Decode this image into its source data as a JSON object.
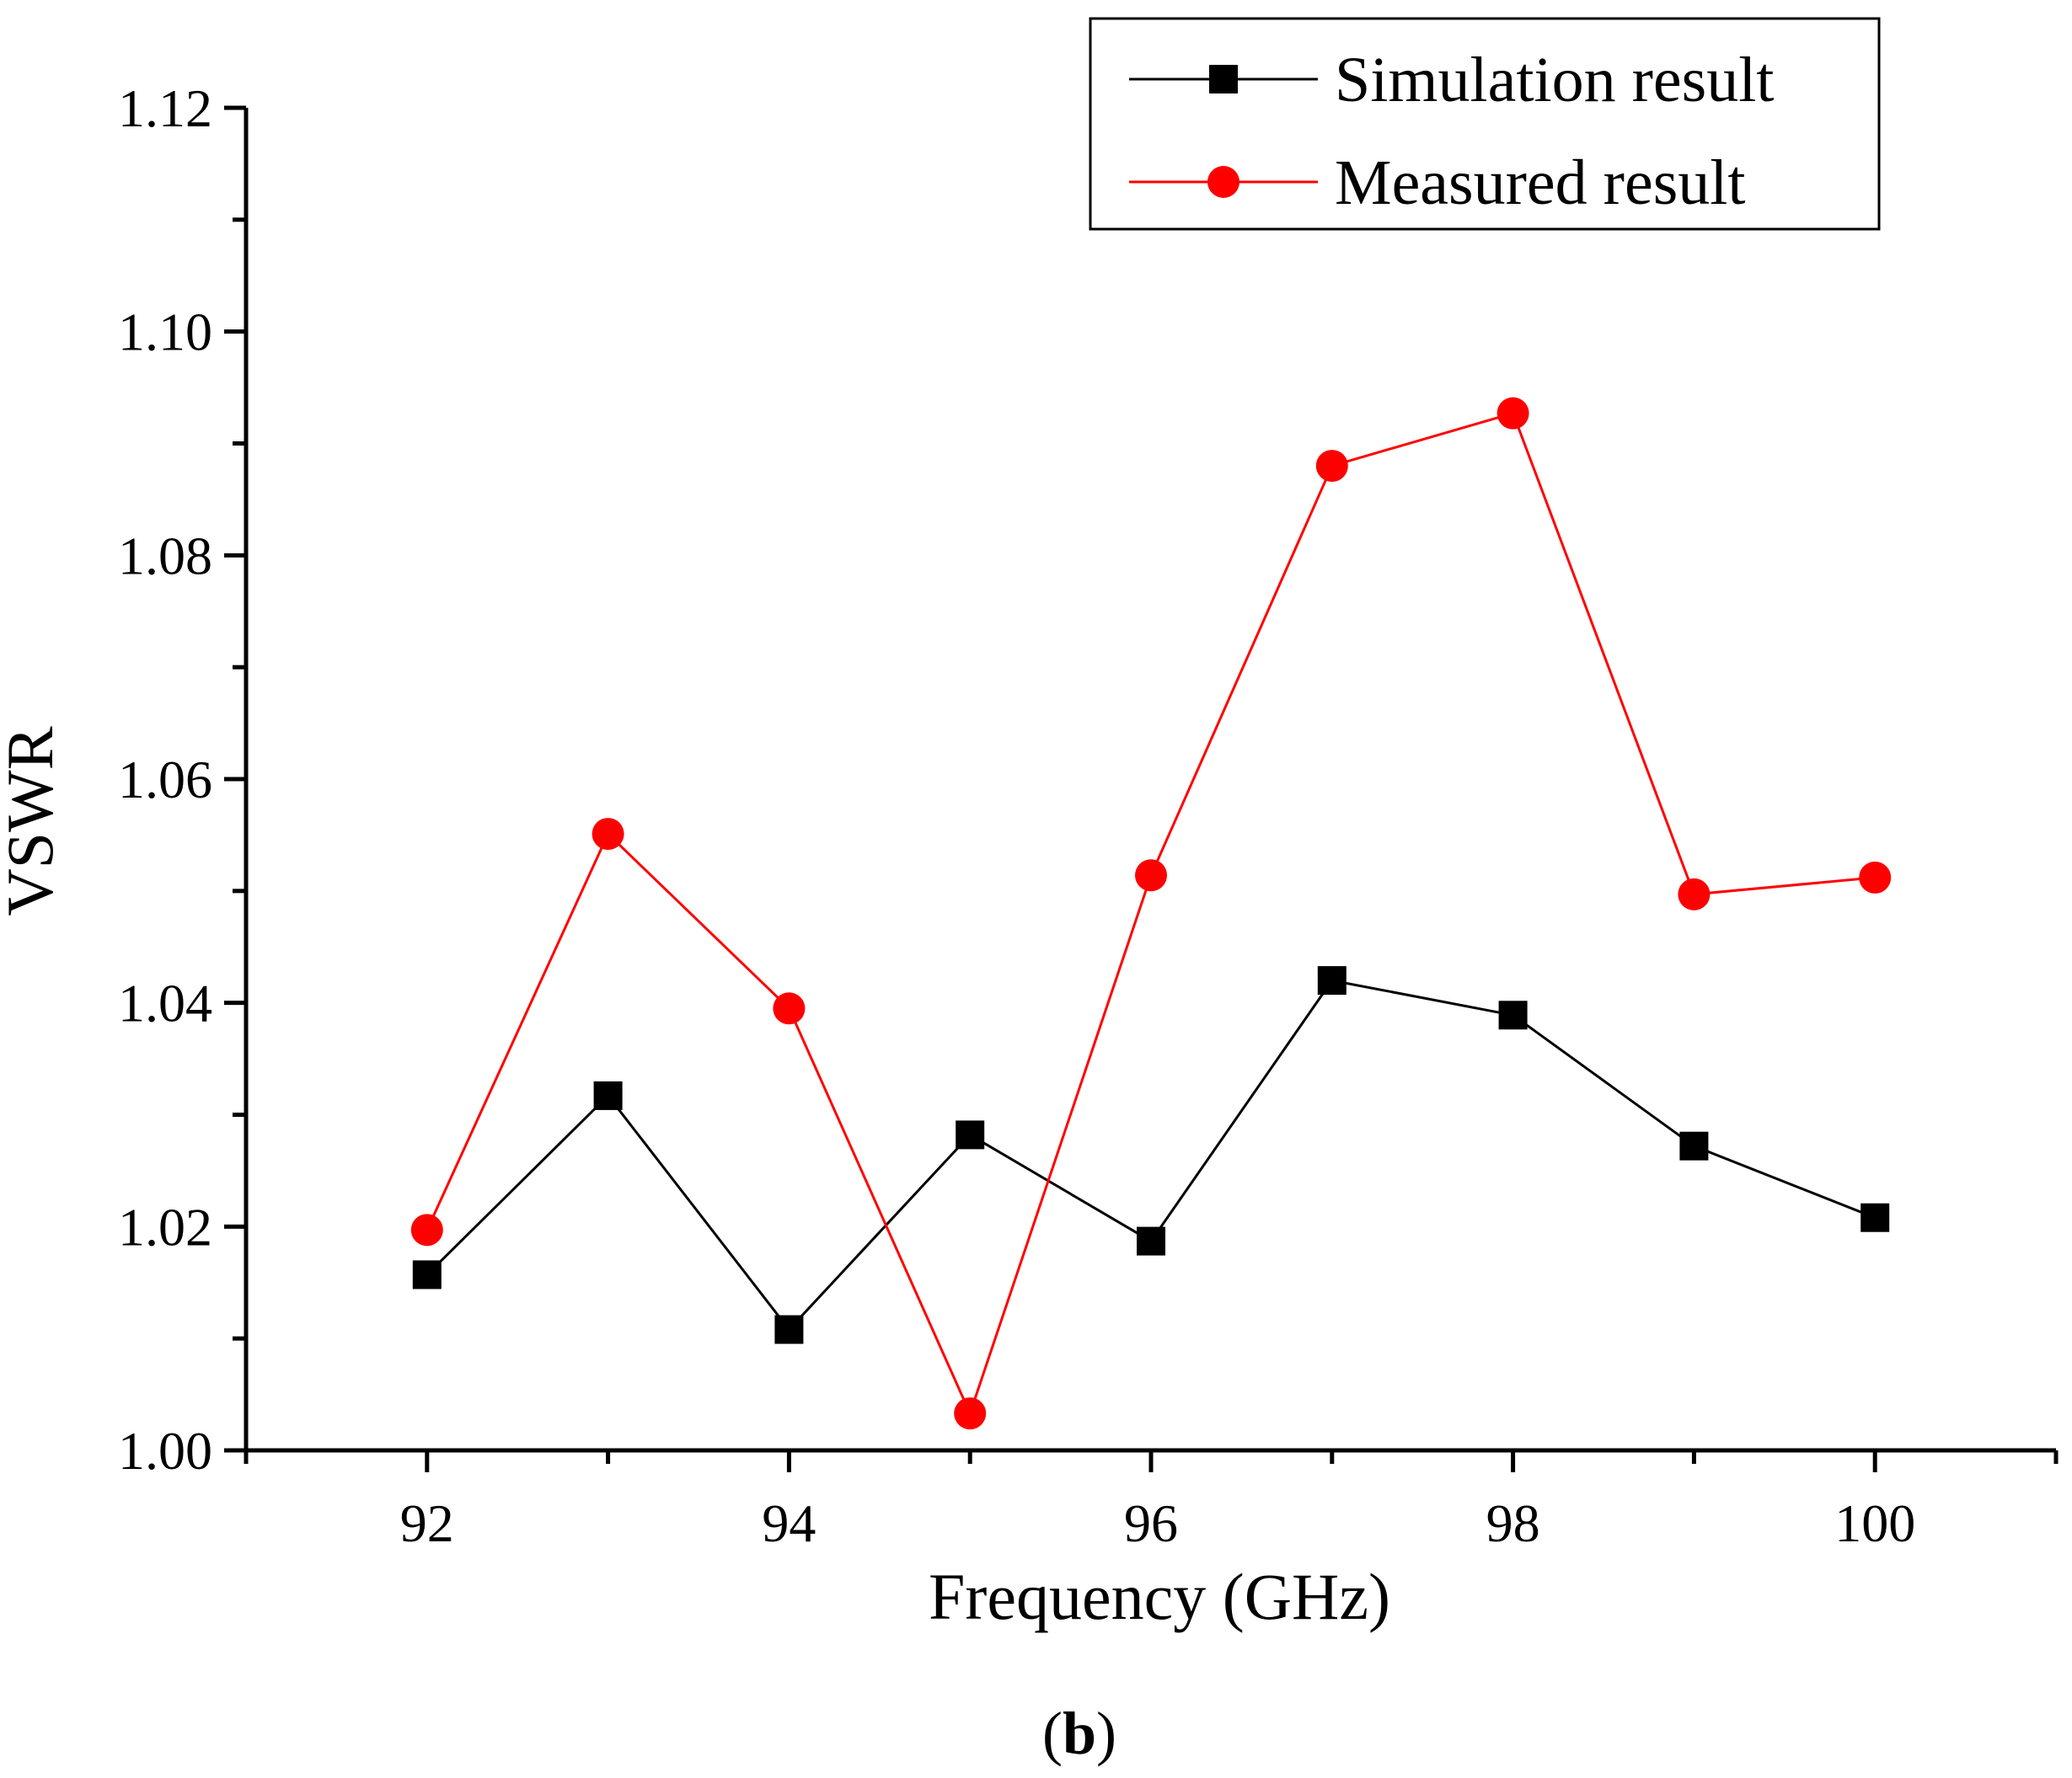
{
  "chart_data": {
    "type": "line",
    "title": "",
    "xlabel": "Frequency (GHz)",
    "ylabel": "VSWR",
    "xlim": [
      91,
      101
    ],
    "ylim": [
      1.0,
      1.12
    ],
    "x_ticks": [
      92,
      94,
      96,
      98,
      100
    ],
    "x_tick_labels": [
      "92",
      "94",
      "96",
      "98",
      "100"
    ],
    "y_ticks": [
      1.0,
      1.02,
      1.04,
      1.06,
      1.08,
      1.1,
      1.12
    ],
    "y_tick_labels": [
      "1.00",
      "1.02",
      "1.04",
      "1.06",
      "1.08",
      "1.10",
      "1.12"
    ],
    "grid": false,
    "legend_position": "top-right",
    "x": [
      92,
      93,
      94,
      95,
      96,
      97,
      98,
      99,
      100
    ],
    "series": [
      {
        "name": "Simulation result",
        "color": "#000000",
        "marker": "square",
        "values": [
          1.0157,
          1.0317,
          1.0108,
          1.0282,
          1.0187,
          1.042,
          1.0389,
          1.0272,
          1.0208
        ]
      },
      {
        "name": "Measured result",
        "color": "#ff0000",
        "marker": "circle",
        "values": [
          1.0197,
          1.0551,
          1.0395,
          1.0033,
          1.0514,
          1.088,
          1.0927,
          1.0497,
          1.0512
        ]
      }
    ],
    "panel_label": {
      "open": "(",
      "letter": "b",
      "close": ")"
    }
  }
}
